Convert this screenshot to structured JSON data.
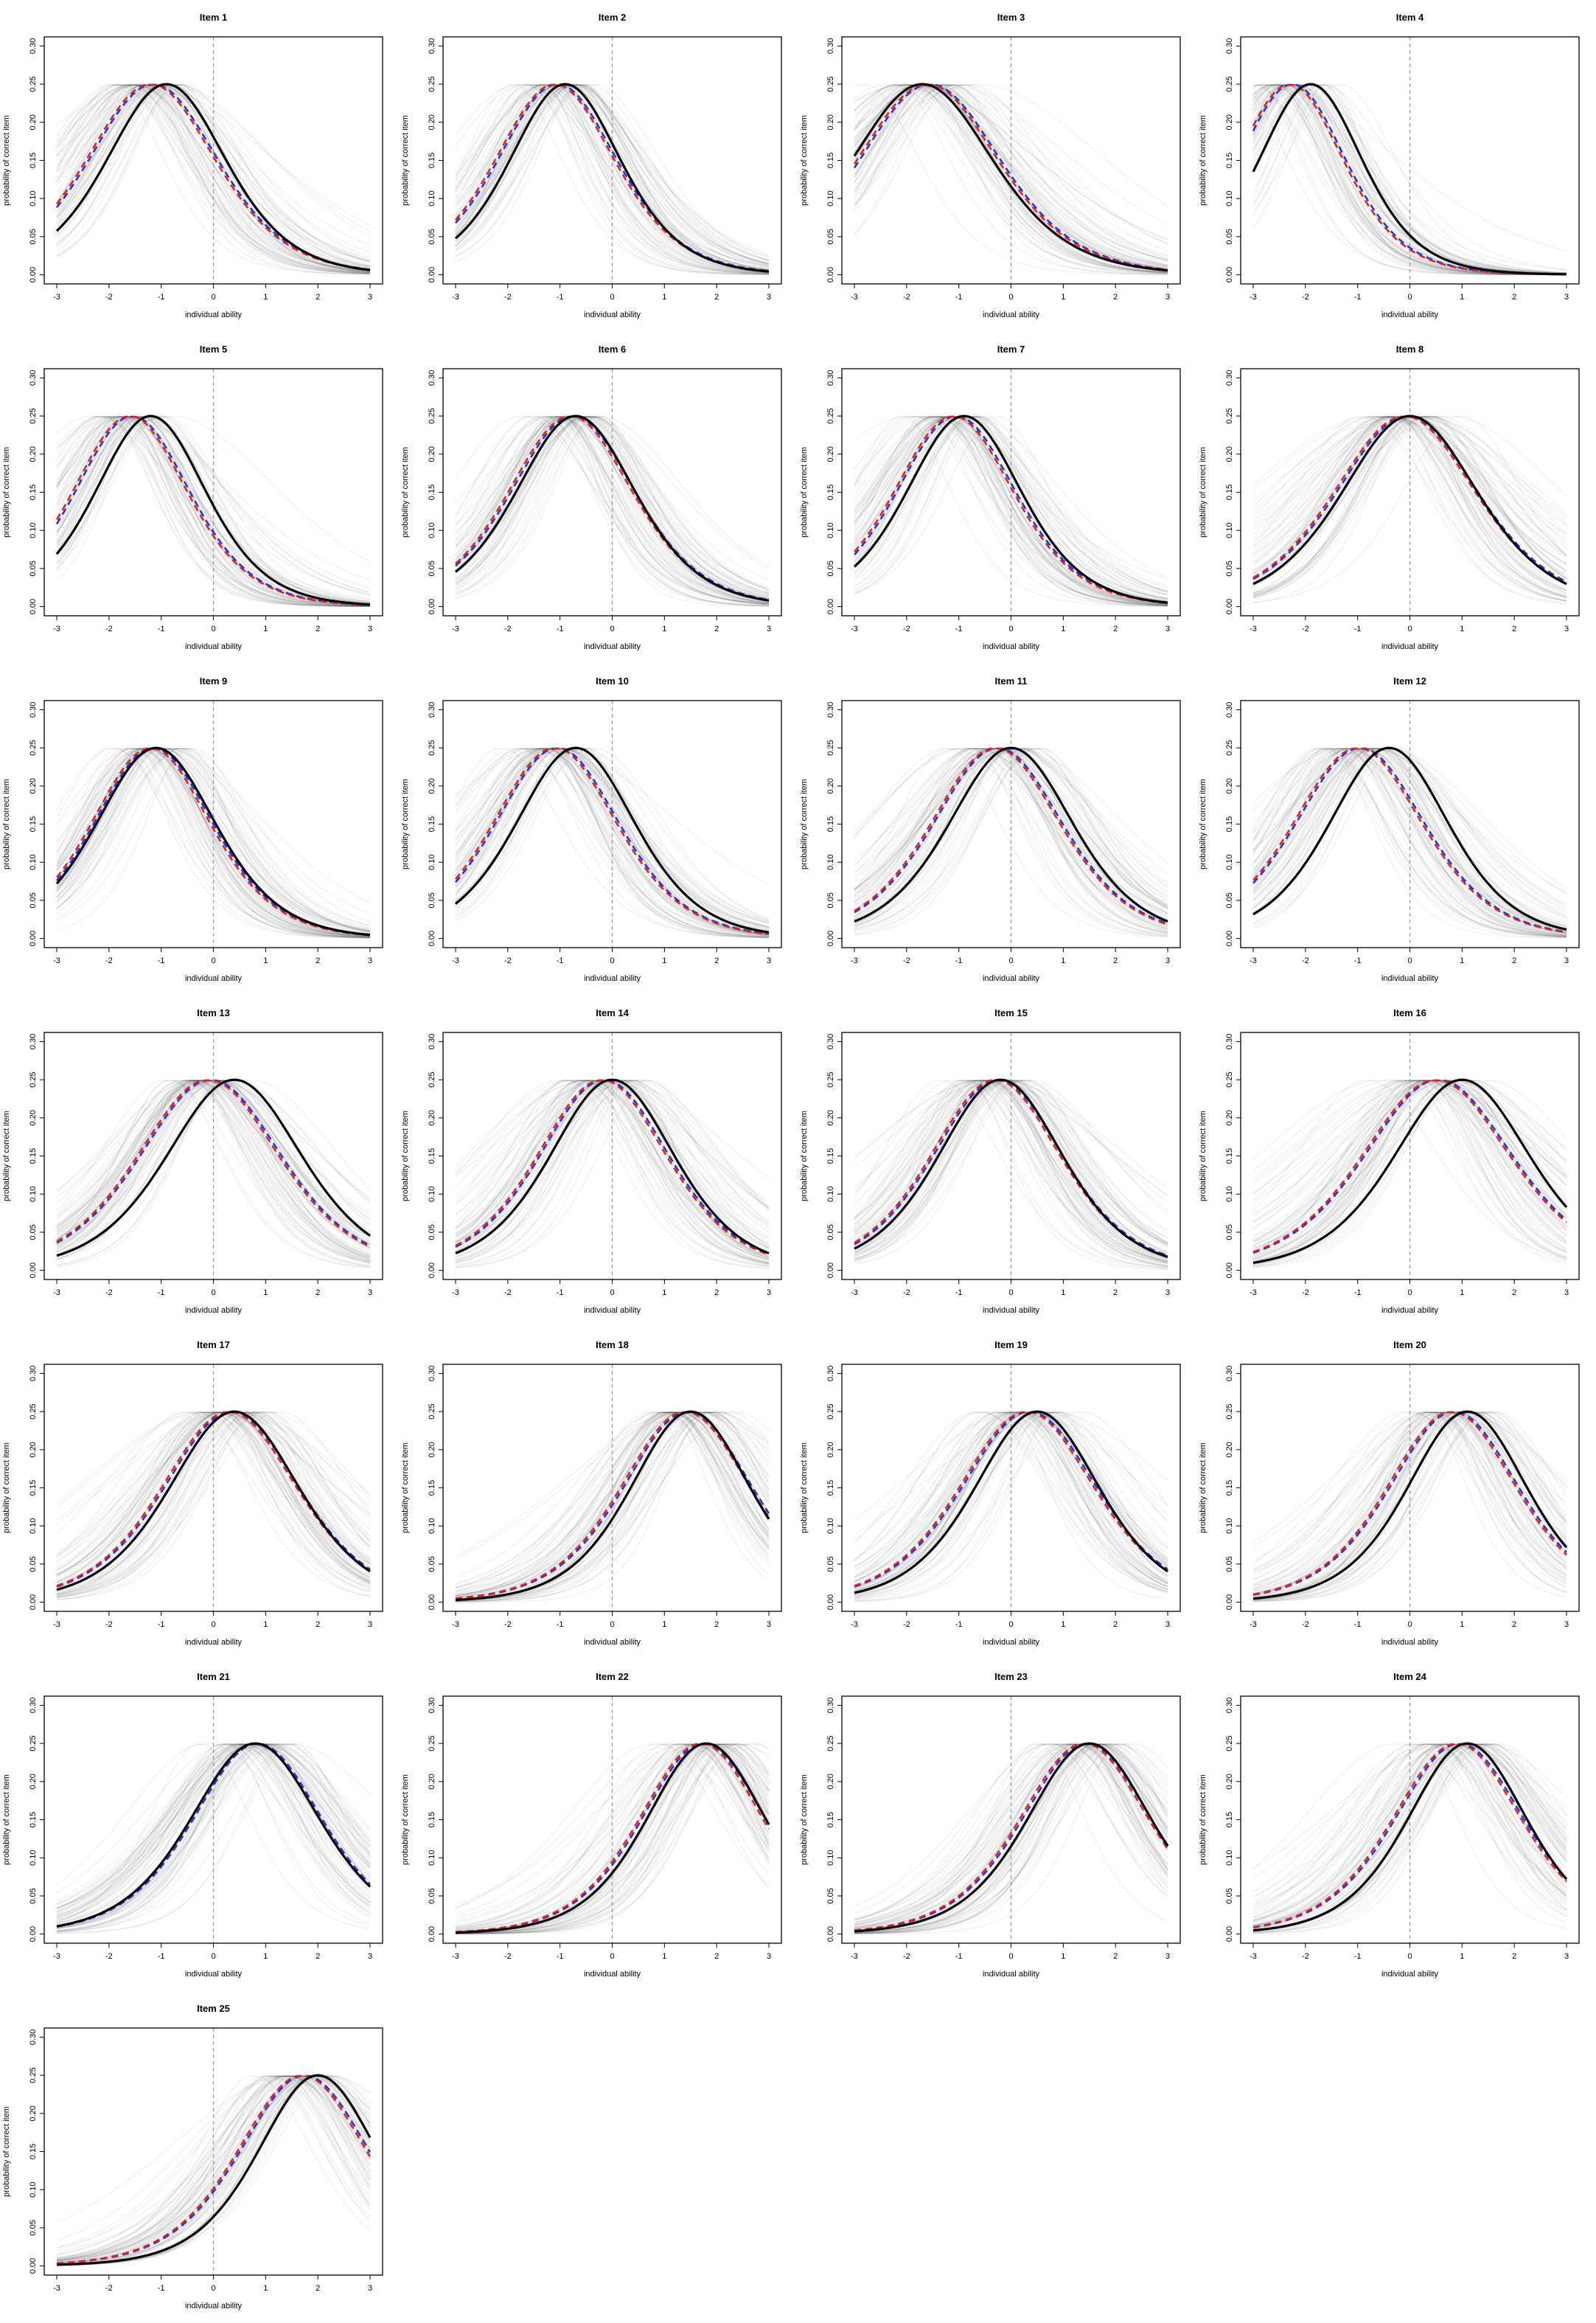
{
  "chart_data": {
    "type": "line",
    "layout": "grid of 25 item panels, 4 columns",
    "xlabel": "individual ability",
    "ylabel": "probability of correct item",
    "xlim": [
      -3,
      3
    ],
    "ylim": [
      0,
      0.3
    ],
    "xticks": [
      "-3",
      "-2",
      "-1",
      "0",
      "1",
      "2",
      "3"
    ],
    "yticks": [
      "0.00",
      "0.05",
      "0.10",
      "0.15",
      "0.20",
      "0.25",
      "0.30"
    ],
    "reference_line": {
      "x": 0,
      "style": "dashed",
      "color": "#999999"
    },
    "max_probability": 0.25,
    "series_styles": {
      "true_curve": {
        "color": "#000000",
        "style": "solid"
      },
      "estimate_red": {
        "color": "#dd2222",
        "style": "dashed"
      },
      "estimate_blue": {
        "color": "#2233dd",
        "style": "dashed"
      },
      "posterior_draws": {
        "color": "#444444",
        "style": "solid, translucent"
      }
    },
    "items": [
      {
        "title": "Item 1",
        "true_peak": -0.9,
        "est_peak": -1.2,
        "true_slope": 1.3,
        "est_slope": 1.2
      },
      {
        "title": "Item 2",
        "true_peak": -0.9,
        "est_peak": -1.1,
        "true_slope": 1.4,
        "est_slope": 1.3
      },
      {
        "title": "Item 3",
        "true_peak": -1.7,
        "est_peak": -1.6,
        "true_slope": 1.1,
        "est_slope": 1.1
      },
      {
        "title": "Item 4",
        "true_peak": -1.9,
        "est_peak": -2.3,
        "true_slope": 1.5,
        "est_slope": 1.45
      },
      {
        "title": "Item 5",
        "true_peak": -1.2,
        "est_peak": -1.6,
        "true_slope": 1.4,
        "est_slope": 1.35
      },
      {
        "title": "Item 6",
        "true_peak": -0.7,
        "est_peak": -0.8,
        "true_slope": 1.3,
        "est_slope": 1.25
      },
      {
        "title": "Item 7",
        "true_peak": -0.9,
        "est_peak": -1.1,
        "true_slope": 1.35,
        "est_slope": 1.3
      },
      {
        "title": "Item 8",
        "true_peak": 0.0,
        "est_peak": -0.1,
        "true_slope": 1.15,
        "est_slope": 1.1
      },
      {
        "title": "Item 9",
        "true_peak": -1.1,
        "est_peak": -1.2,
        "true_slope": 1.3,
        "est_slope": 1.3
      },
      {
        "title": "Item 10",
        "true_peak": -0.7,
        "est_peak": -1.1,
        "true_slope": 1.3,
        "est_slope": 1.25
      },
      {
        "title": "Item 11",
        "true_peak": 0.0,
        "est_peak": -0.3,
        "true_slope": 1.25,
        "est_slope": 1.2
      },
      {
        "title": "Item 12",
        "true_peak": -0.4,
        "est_peak": -1.0,
        "true_slope": 1.3,
        "est_slope": 1.2
      },
      {
        "title": "Item 13",
        "true_peak": 0.4,
        "est_peak": -0.1,
        "true_slope": 1.15,
        "est_slope": 1.1
      },
      {
        "title": "Item 14",
        "true_peak": 0.0,
        "est_peak": -0.2,
        "true_slope": 1.25,
        "est_slope": 1.2
      },
      {
        "title": "Item 15",
        "true_peak": -0.2,
        "est_peak": -0.3,
        "true_slope": 1.25,
        "est_slope": 1.2
      },
      {
        "title": "Item 16",
        "true_peak": 1.0,
        "est_peak": 0.5,
        "true_slope": 1.15,
        "est_slope": 1.05
      },
      {
        "title": "Item 17",
        "true_peak": 0.4,
        "est_peak": 0.3,
        "true_slope": 1.2,
        "est_slope": 1.15
      },
      {
        "title": "Item 18",
        "true_peak": 1.5,
        "est_peak": 1.4,
        "true_slope": 1.3,
        "est_slope": 1.2
      },
      {
        "title": "Item 19",
        "true_peak": 0.5,
        "est_peak": 0.3,
        "true_slope": 1.25,
        "est_slope": 1.15
      },
      {
        "title": "Item 20",
        "true_peak": 1.1,
        "est_peak": 0.8,
        "true_slope": 1.3,
        "est_slope": 1.2
      },
      {
        "title": "Item 21",
        "true_peak": 0.8,
        "est_peak": 0.8,
        "true_slope": 1.2,
        "est_slope": 1.2
      },
      {
        "title": "Item 22",
        "true_peak": 1.8,
        "est_peak": 1.7,
        "true_slope": 1.3,
        "est_slope": 1.25
      },
      {
        "title": "Item 23",
        "true_peak": 1.5,
        "est_peak": 1.4,
        "true_slope": 1.25,
        "est_slope": 1.2
      },
      {
        "title": "Item 24",
        "true_peak": 1.1,
        "est_peak": 0.9,
        "true_slope": 1.3,
        "est_slope": 1.2
      },
      {
        "title": "Item 25",
        "true_peak": 2.0,
        "est_peak": 1.7,
        "true_slope": 1.3,
        "est_slope": 1.2
      }
    ]
  }
}
